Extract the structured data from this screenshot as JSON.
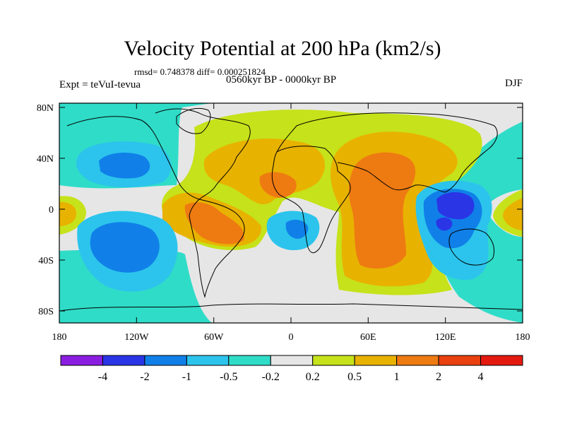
{
  "header": {
    "title": "Velocity Potential at 200 hPa (km2/s)",
    "stats": "rmsd= 0.748378 diff= 0.000251824",
    "experiment": "Expt = teVuI-tevua",
    "period": "0560kyr BP - 0000kyr BP",
    "season": "DJF"
  },
  "axes": {
    "lat_labels": [
      "80N",
      "40N",
      "0",
      "40S",
      "80S"
    ],
    "lon_labels": [
      "180",
      "120W",
      "60W",
      "0",
      "60E",
      "120E",
      "180"
    ]
  },
  "colorbar": {
    "labels": [
      "-4",
      "-2",
      "-1",
      "-0.5",
      "-0.2",
      "0.2",
      "0.5",
      "1",
      "2",
      "4"
    ],
    "colors": [
      "#8a1ee0",
      "#2a35e6",
      "#1080e8",
      "#2cc4ec",
      "#2fdcc8",
      "#e6e6e6",
      "#c6e21a",
      "#e8b200",
      "#ee7a12",
      "#e8400e",
      "#e41a10"
    ]
  },
  "colors": {
    "land_outline": "#000000",
    "neutral": "#e6e6e6",
    "neg_weak": "#2fdcc8",
    "neg_mid": "#2cc4ec",
    "neg_strong": "#1080e8",
    "neg_max": "#2a35e6",
    "pos_weak": "#c6e21a",
    "pos_mid": "#e8b200",
    "pos_strong": "#ee7a12"
  }
}
